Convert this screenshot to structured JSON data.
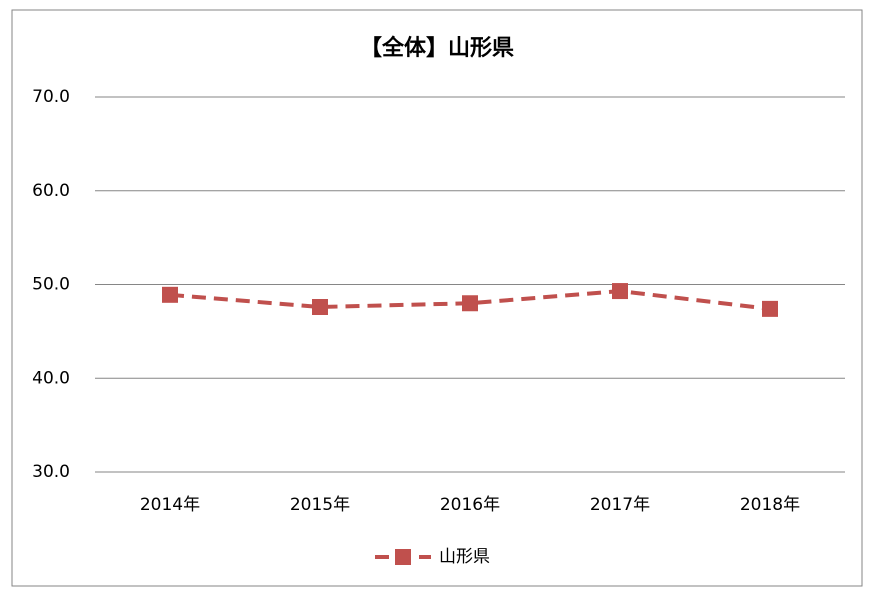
{
  "chart_data": {
    "type": "line",
    "title": "【全体】山形県",
    "categories": [
      "2014年",
      "2015年",
      "2016年",
      "2017年",
      "2018年"
    ],
    "series": [
      {
        "name": "山形県",
        "color": "#c0504d",
        "values": [
          48.9,
          47.6,
          48.0,
          49.3,
          47.4
        ]
      }
    ],
    "ylim": [
      30,
      70
    ],
    "yticks": [
      {
        "value": 30,
        "label": "30.0"
      },
      {
        "value": 40,
        "label": "40.0"
      },
      {
        "value": 50,
        "label": "50.0"
      },
      {
        "value": 60,
        "label": "60.0"
      },
      {
        "value": 70,
        "label": "70.0"
      }
    ],
    "grid": true,
    "legend": "bottom"
  }
}
